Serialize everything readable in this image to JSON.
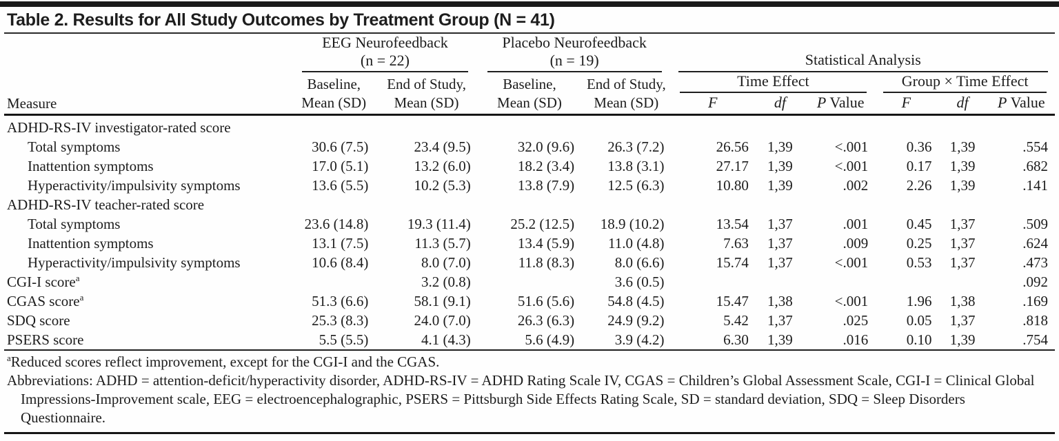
{
  "title": "Table 2. Results for All Study Outcomes by Treatment Group (N = 41)",
  "header": {
    "measure": "Measure",
    "eeg": {
      "line1": "EEG Neurofeedback",
      "line2": "(n = 22)"
    },
    "placebo": {
      "line1": "Placebo Neurofeedback",
      "line2": "(n = 19)"
    },
    "stat": "Statistical Analysis",
    "baseline": {
      "line1": "Baseline,",
      "line2": "Mean (SD)"
    },
    "end_of_study": {
      "line1": "End of Study,",
      "line2": "Mean (SD)"
    },
    "time_effect": "Time Effect",
    "group_time_effect": "Group × Time Effect",
    "f": "F",
    "df": "df",
    "p": "P",
    "value": "Value"
  },
  "table": {
    "rows": [
      {
        "label": "ADHD-RS-IV investigator-rated score",
        "section": true,
        "cells": [
          "",
          "",
          "",
          "",
          "",
          "",
          "",
          "",
          "",
          ""
        ]
      },
      {
        "label": "Total symptoms",
        "indent": true,
        "cells": [
          "30.6 (7.5)",
          "23.4 (9.5)",
          "32.0 (9.6)",
          "26.3 (7.2)",
          "26.56",
          "1,39",
          "<.001",
          "0.36",
          "1,39",
          ".554"
        ]
      },
      {
        "label": "Inattention symptoms",
        "indent": true,
        "cells": [
          "17.0 (5.1)",
          "13.2 (6.0)",
          "18.2 (3.4)",
          "13.8 (3.1)",
          "27.17",
          "1,39",
          "<.001",
          "0.17",
          "1,39",
          ".682"
        ]
      },
      {
        "label": "Hyperactivity/impulsivity symptoms",
        "indent": true,
        "cells": [
          "13.6 (5.5)",
          "10.2 (5.3)",
          "13.8 (7.9)",
          "12.5 (6.3)",
          "10.80",
          "1,39",
          ".002",
          "2.26",
          "1,39",
          ".141"
        ]
      },
      {
        "label": "ADHD-RS-IV teacher-rated score",
        "section": true,
        "cells": [
          "",
          "",
          "",
          "",
          "",
          "",
          "",
          "",
          "",
          ""
        ]
      },
      {
        "label": "Total symptoms",
        "indent": true,
        "cells": [
          "23.6 (14.8)",
          "19.3 (11.4)",
          "25.2 (12.5)",
          "18.9 (10.2)",
          "13.54",
          "1,37",
          ".001",
          "0.45",
          "1,37",
          ".509"
        ]
      },
      {
        "label": "Inattention symptoms",
        "indent": true,
        "cells": [
          "13.1 (7.5)",
          "11.3 (5.7)",
          "13.4 (5.9)",
          "11.0 (4.8)",
          "7.63",
          "1,37",
          ".009",
          "0.25",
          "1,37",
          ".624"
        ]
      },
      {
        "label": "Hyperactivity/impulsivity symptoms",
        "indent": true,
        "cells": [
          "10.6 (8.4)",
          "8.0 (7.0)",
          "11.8 (8.3)",
          "8.0 (6.6)",
          "15.74",
          "1,37",
          "<.001",
          "0.53",
          "1,37",
          ".473"
        ]
      },
      {
        "label": "CGI-I score",
        "sup": "a",
        "cells": [
          "",
          "3.2 (0.8)",
          "",
          "3.6 (0.5)",
          "",
          "",
          "",
          "",
          "",
          ".092"
        ]
      },
      {
        "label": "CGAS score",
        "sup": "a",
        "cells": [
          "51.3 (6.6)",
          "58.1 (9.1)",
          "51.6 (5.6)",
          "54.8 (4.5)",
          "15.47",
          "1,38",
          "<.001",
          "1.96",
          "1,38",
          ".169"
        ]
      },
      {
        "label": "SDQ score",
        "cells": [
          "25.3 (8.3)",
          "24.0 (7.0)",
          "26.3 (6.3)",
          "24.9 (9.2)",
          "5.42",
          "1,37",
          ".025",
          "0.05",
          "1,37",
          ".818"
        ]
      },
      {
        "label": "PSERS score",
        "cells": [
          "5.5 (5.5)",
          "4.1 (4.3)",
          "5.6 (4.9)",
          "3.9 (4.2)",
          "6.30",
          "1,39",
          ".016",
          "0.10",
          "1,39",
          ".754"
        ]
      }
    ]
  },
  "footnotes": {
    "a_marker": "a",
    "a_text": "Reduced scores reflect improvement, except for the CGI-I and the CGAS.",
    "abbreviations": "Abbreviations: ADHD = attention-deficit/hyperactivity disorder, ADHD-RS-IV = ADHD Rating Scale IV, CGAS = Children’s Global Assessment Scale, CGI-I = Clinical Global Impressions-Improvement scale, EEG = electroencephalographic, PSERS = Pittsburgh Side Effects Rating Scale, SD = standard deviation, SDQ = Sleep Disorders Questionnaire."
  },
  "colors": {
    "rule": "#1a1a1a",
    "text": "#1c1c1c",
    "background": "#fefefe"
  }
}
